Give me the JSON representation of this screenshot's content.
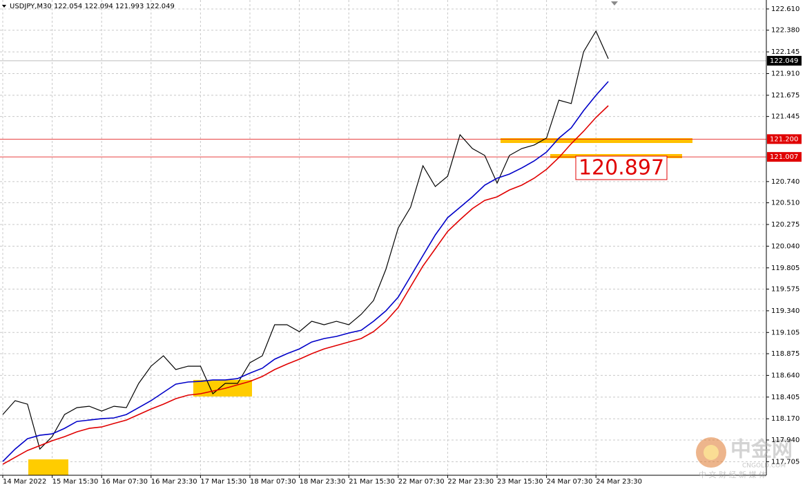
{
  "chart_data": {
    "type": "line",
    "title": "USDJPY,M30  122.054 122.094 121.993 122.049",
    "categories": [
      "14 Mar 2022",
      null,
      null,
      null,
      "15 Mar 15:30",
      null,
      null,
      null,
      "16 Mar 07:30",
      null,
      null,
      null,
      "16 Mar 23:30",
      null,
      null,
      null,
      "17 Mar 15:30",
      null,
      null,
      null,
      "18 Mar 07:30",
      null,
      null,
      null,
      "18 Mar 23:30",
      null,
      null,
      null,
      "21 Mar 15:30",
      null,
      null,
      null,
      "22 Mar 07:30",
      null,
      null,
      null,
      "22 Mar 23:30",
      null,
      null,
      null,
      "23 Mar 15:30",
      null,
      null,
      null,
      "24 Mar 07:30",
      null,
      null,
      null,
      "24 Mar 23:30",
      null
    ],
    "series": [
      {
        "color": "#000000",
        "values": [
          118.216,
          118.366,
          118.328,
          117.842,
          117.977,
          118.216,
          118.291,
          118.306,
          118.253,
          118.306,
          118.291,
          118.553,
          118.74,
          118.852,
          118.703,
          118.74,
          118.74,
          118.441,
          118.553,
          118.553,
          118.777,
          118.852,
          119.189,
          119.189,
          119.114,
          119.226,
          119.189,
          119.226,
          119.189,
          119.301,
          119.451,
          119.788,
          120.237,
          120.462,
          120.911,
          120.686,
          120.798,
          121.247,
          121.098,
          121.023,
          120.724,
          121.023,
          121.098,
          121.136,
          121.211,
          121.622,
          121.585,
          122.146,
          122.37,
          122.071
        ]
      },
      {
        "color": "#0000c8",
        "values": [
          117.707,
          117.842,
          117.954,
          117.991,
          118.006,
          118.066,
          118.141,
          118.156,
          118.171,
          118.179,
          118.216,
          118.291,
          118.366,
          118.456,
          118.545,
          118.568,
          118.575,
          118.59,
          118.59,
          118.605,
          118.665,
          118.717,
          118.815,
          118.875,
          118.927,
          119.002,
          119.039,
          119.062,
          119.099,
          119.129,
          119.226,
          119.339,
          119.488,
          119.713,
          119.938,
          120.162,
          120.349,
          120.461,
          120.574,
          120.701,
          120.776,
          120.821,
          120.888,
          120.963,
          121.06,
          121.21,
          121.322,
          121.509,
          121.674,
          121.824
        ]
      },
      {
        "color": "#e00000",
        "values": [
          117.677,
          117.752,
          117.827,
          117.879,
          117.932,
          117.976,
          118.029,
          118.066,
          118.081,
          118.119,
          118.156,
          118.216,
          118.276,
          118.328,
          118.388,
          118.426,
          118.441,
          118.47,
          118.5,
          118.538,
          118.575,
          118.628,
          118.703,
          118.762,
          118.815,
          118.875,
          118.927,
          118.964,
          119.002,
          119.039,
          119.114,
          119.226,
          119.376,
          119.601,
          119.825,
          120.012,
          120.2,
          120.327,
          120.447,
          120.536,
          120.574,
          120.649,
          120.701,
          120.776,
          120.873,
          121.0,
          121.15,
          121.285,
          121.435,
          121.562
        ]
      }
    ],
    "ylim": [
      117.558,
      122.707
    ],
    "yticks": [
      {
        "value": 117.705,
        "label": "117.705"
      },
      {
        "value": 117.94,
        "label": "117.940"
      },
      {
        "value": 118.17,
        "label": "118.170"
      },
      {
        "value": 118.405,
        "label": "118.405"
      },
      {
        "value": 118.64,
        "label": "118.640"
      },
      {
        "value": 118.875,
        "label": "118.875"
      },
      {
        "value": 119.105,
        "label": "119.105"
      },
      {
        "value": 119.34,
        "label": "119.340"
      },
      {
        "value": 119.575,
        "label": "119.575"
      },
      {
        "value": 119.805,
        "label": "119.805"
      },
      {
        "value": 120.04,
        "label": "120.040"
      },
      {
        "value": 120.275,
        "label": "120.275"
      },
      {
        "value": 120.51,
        "label": "120.510"
      },
      {
        "value": 120.74,
        "label": "120.740"
      },
      {
        "value": 121.445,
        "label": "121.445"
      },
      {
        "value": 121.675,
        "label": "121.675"
      },
      {
        "value": 121.91,
        "label": "121.910"
      },
      {
        "value": 122.145,
        "label": "122.145"
      },
      {
        "value": 122.38,
        "label": "122.380"
      },
      {
        "value": 122.61,
        "label": "122.610"
      }
    ],
    "grid": true,
    "levels": [
      {
        "value": 121.2,
        "label": "121.200",
        "color": "#e00000"
      },
      {
        "value": 121.007,
        "label": "121.007",
        "color": "#e00000"
      }
    ],
    "current_price": {
      "value": 122.049,
      "label": "122.049"
    },
    "annotation": "120.897",
    "watermark": {
      "brand": "中金网",
      "site": "CNGOLD.COM",
      "tagline": "中 文 财 经 新 媒 体"
    }
  }
}
